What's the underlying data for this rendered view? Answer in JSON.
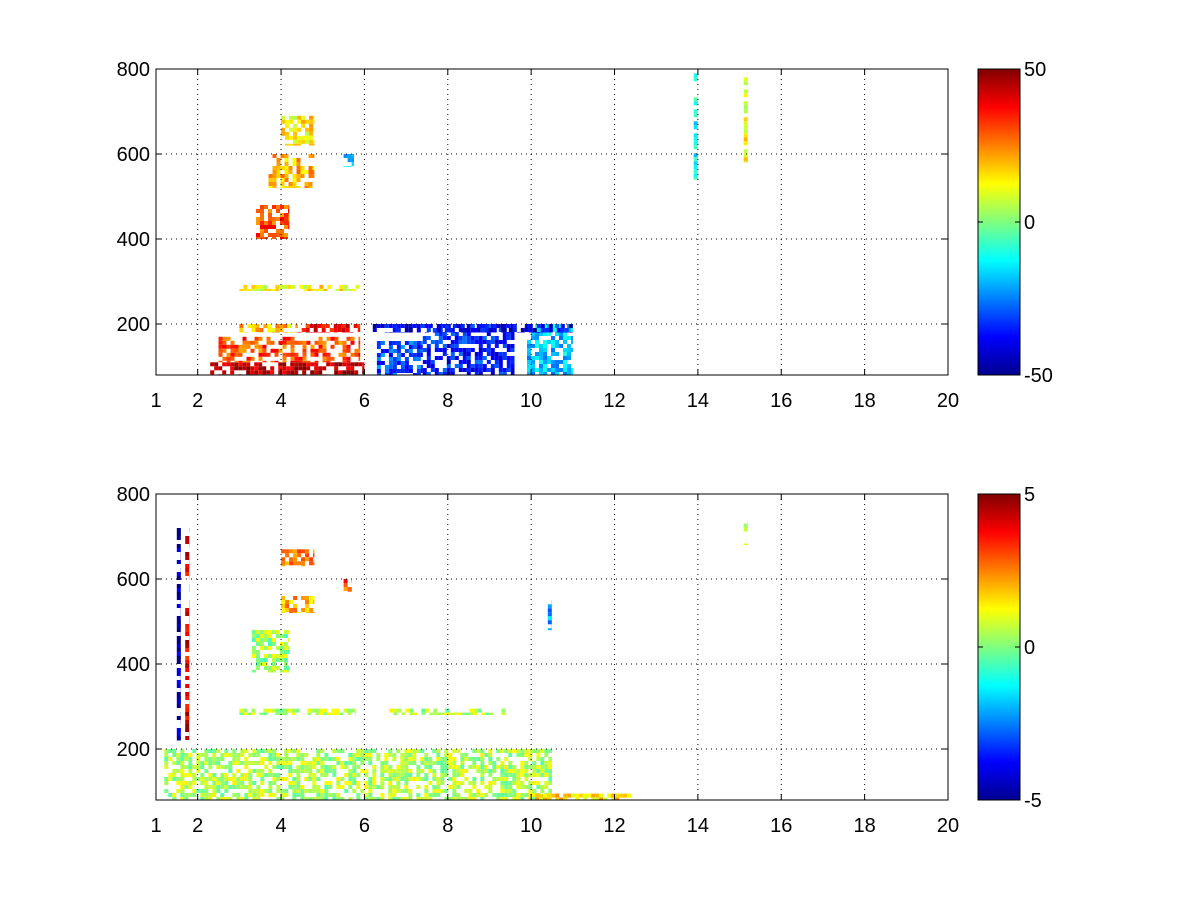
{
  "chart_data": [
    {
      "type": "heatmap",
      "title": "",
      "xlabel": "",
      "ylabel": "",
      "colormap": "jet",
      "grid": true,
      "grid_style": "dotted",
      "xlim": [
        1,
        20
      ],
      "ylim": [
        80,
        800
      ],
      "xticks": [
        1,
        2,
        4,
        6,
        8,
        10,
        12,
        14,
        16,
        18,
        20
      ],
      "xtick_labels": [
        "1",
        "2",
        "4",
        "6",
        "8",
        "10",
        "12",
        "14",
        "16",
        "18",
        "20"
      ],
      "yticks": [
        200,
        400,
        600,
        800
      ],
      "ytick_labels": [
        "200",
        "400",
        "600",
        "800"
      ],
      "clim": [
        -50,
        50
      ],
      "colorbar_ticks": [
        -50,
        0,
        50
      ],
      "colorbar_tick_labels": [
        "-50",
        "0",
        "50"
      ],
      "features": [
        {
          "x": [
            2.3,
            6.0
          ],
          "y": [
            80,
            110
          ],
          "value": 45
        },
        {
          "x": [
            2.5,
            5.9
          ],
          "y": [
            110,
            170
          ],
          "value": 30
        },
        {
          "x": [
            3.0,
            4.4
          ],
          "y": [
            180,
            200
          ],
          "value": 18
        },
        {
          "x": [
            4.4,
            5.9
          ],
          "y": [
            180,
            200
          ],
          "value": 38
        },
        {
          "x": [
            3.0,
            5.9
          ],
          "y": [
            278,
            292
          ],
          "value": 12
        },
        {
          "x": [
            3.4,
            4.2
          ],
          "y": [
            400,
            480
          ],
          "value": 30
        },
        {
          "x": [
            3.7,
            4.8
          ],
          "y": [
            520,
            600
          ],
          "value": 20
        },
        {
          "x": [
            4.0,
            4.8
          ],
          "y": [
            620,
            690
          ],
          "value": 14
        },
        {
          "x": [
            6.3,
            7.4
          ],
          "y": [
            80,
            160
          ],
          "value": -30
        },
        {
          "x": [
            7.4,
            9.6
          ],
          "y": [
            80,
            200
          ],
          "value": -35
        },
        {
          "x": [
            9.9,
            11.0
          ],
          "y": [
            80,
            200
          ],
          "value": -18
        },
        {
          "x": [
            6.2,
            11.0
          ],
          "y": [
            180,
            200
          ],
          "value": -40
        },
        {
          "x": [
            5.5,
            5.75
          ],
          "y": [
            570,
            600
          ],
          "value": -20
        },
        {
          "x": [
            13.9,
            14.0
          ],
          "y": [
            540,
            790
          ],
          "value": -12
        },
        {
          "x": [
            15.1,
            15.2
          ],
          "y": [
            580,
            790
          ],
          "value": 12
        }
      ]
    },
    {
      "type": "heatmap",
      "title": "",
      "xlabel": "",
      "ylabel": "",
      "colormap": "jet",
      "grid": true,
      "grid_style": "dotted",
      "xlim": [
        1,
        20
      ],
      "ylim": [
        80,
        800
      ],
      "xticks": [
        1,
        2,
        4,
        6,
        8,
        10,
        12,
        14,
        16,
        18,
        20
      ],
      "xtick_labels": [
        "1",
        "2",
        "4",
        "6",
        "8",
        "10",
        "12",
        "14",
        "16",
        "18",
        "20"
      ],
      "yticks": [
        200,
        400,
        600,
        800
      ],
      "ytick_labels": [
        "200",
        "400",
        "600",
        "800"
      ],
      "clim": [
        -5,
        5
      ],
      "colorbar_ticks": [
        -5,
        0,
        5
      ],
      "colorbar_tick_labels": [
        "-5",
        "0",
        "5"
      ],
      "features": [
        {
          "x": [
            1.2,
            10.5
          ],
          "y": [
            80,
            200
          ],
          "value": 0.5
        },
        {
          "x": [
            3.0,
            5.8
          ],
          "y": [
            280,
            295
          ],
          "value": 0.5
        },
        {
          "x": [
            6.6,
            9.4
          ],
          "y": [
            280,
            295
          ],
          "value": 0.5
        },
        {
          "x": [
            3.3,
            4.2
          ],
          "y": [
            380,
            480
          ],
          "value": 0.3
        },
        {
          "x": [
            4.0,
            4.8
          ],
          "y": [
            520,
            560
          ],
          "value": 2.0
        },
        {
          "x": [
            4.0,
            4.8
          ],
          "y": [
            630,
            670
          ],
          "value": 2.5
        },
        {
          "x": [
            5.5,
            5.7
          ],
          "y": [
            570,
            600
          ],
          "value": 3.0
        },
        {
          "x": [
            1.5,
            1.6
          ],
          "y": [
            220,
            720
          ],
          "value": -4.5
        },
        {
          "x": [
            1.7,
            1.8
          ],
          "y": [
            220,
            720
          ],
          "value": 4.0
        },
        {
          "x": [
            10.4,
            10.5
          ],
          "y": [
            480,
            550
          ],
          "value": -2.0
        },
        {
          "x": [
            15.1,
            15.2
          ],
          "y": [
            680,
            740
          ],
          "value": 1.0
        },
        {
          "x": [
            10.0,
            12.5
          ],
          "y": [
            80,
            95
          ],
          "value": 1.5
        }
      ]
    }
  ]
}
